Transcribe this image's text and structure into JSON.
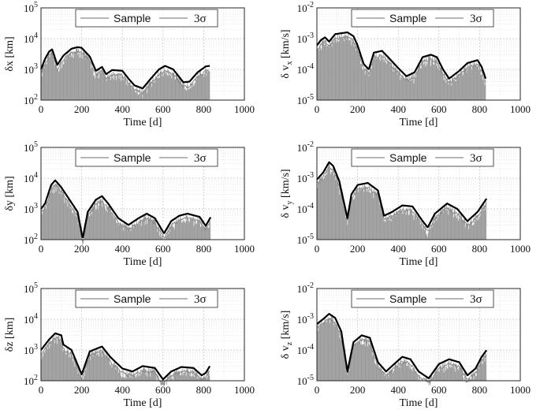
{
  "chart_data": [
    {
      "type": "line",
      "id": "dx",
      "ylabel": "δx [km]",
      "xlabel": "Time [d]",
      "xlim": [
        0,
        1000
      ],
      "ylim": [
        100,
        100000
      ],
      "xticks": [
        0,
        200,
        400,
        600,
        800,
        1000
      ],
      "yticks": [
        {
          "base": "10",
          "exp": "2"
        },
        {
          "base": "10",
          "exp": "3"
        },
        {
          "base": "10",
          "exp": "4"
        },
        {
          "base": "10",
          "exp": "5"
        }
      ],
      "yexps": [
        2,
        3,
        4,
        5
      ],
      "legend": {
        "entries": [
          "Sample",
          "3σ"
        ],
        "position": "top"
      },
      "series": [
        {
          "name": "3σ",
          "x": [
            0,
            20,
            40,
            55,
            80,
            110,
            150,
            180,
            200,
            240,
            270,
            300,
            320,
            350,
            400,
            430,
            460,
            500,
            540,
            580,
            610,
            650,
            700,
            730,
            770,
            810,
            830
          ],
          "values": [
            1000,
            2200,
            3800,
            4500,
            1400,
            2800,
            4700,
            5300,
            5000,
            2600,
            900,
            1200,
            700,
            950,
            900,
            500,
            300,
            240,
            500,
            1000,
            1300,
            1000,
            380,
            400,
            800,
            1250,
            1300
          ]
        },
        {
          "name": "Sample",
          "x": [
            0,
            40,
            80,
            150,
            200,
            270,
            320,
            400,
            500,
            610,
            700,
            830
          ],
          "values": [
            800,
            3000,
            1100,
            3800,
            4000,
            700,
            550,
            700,
            190,
            1000,
            300,
            1000
          ]
        }
      ]
    },
    {
      "type": "line",
      "id": "dvx",
      "ylabel": "δ v_x [km/s]",
      "xlabel": "Time [d]",
      "xlim": [
        0,
        1000
      ],
      "ylim": [
        1e-05,
        0.01
      ],
      "xticks": [
        0,
        200,
        400,
        600,
        800,
        1000
      ],
      "yticks": [
        {
          "base": "10",
          "exp": "-5"
        },
        {
          "base": "10",
          "exp": "-4"
        },
        {
          "base": "10",
          "exp": "-3"
        },
        {
          "base": "10",
          "exp": "-2"
        }
      ],
      "yexps": [
        -5,
        -4,
        -3,
        -2
      ],
      "legend": {
        "entries": [
          "Sample",
          "3σ"
        ],
        "position": "top"
      },
      "series": [
        {
          "name": "3σ",
          "x": [
            0,
            20,
            40,
            60,
            90,
            120,
            150,
            180,
            200,
            230,
            255,
            280,
            320,
            350,
            400,
            440,
            480,
            520,
            560,
            590,
            620,
            650,
            700,
            740,
            790,
            810,
            830
          ],
          "values": [
            0.0006,
            0.0009,
            0.0011,
            0.0008,
            0.0014,
            0.0015,
            0.0016,
            0.0012,
            0.0006,
            0.00015,
            0.0001,
            0.00035,
            0.0004,
            0.00025,
            0.00011,
            6e-05,
            8e-05,
            0.00025,
            0.0003,
            0.00025,
            0.0001,
            5e-05,
            9e-05,
            0.00016,
            0.0002,
            0.00012,
            5e-05
          ]
        },
        {
          "name": "Sample",
          "x": [
            0,
            60,
            150,
            200,
            255,
            320,
            440,
            560,
            650,
            790,
            830
          ],
          "values": [
            0.0004,
            0.0006,
            0.001,
            0.0004,
            6e-05,
            0.00025,
            3e-05,
            0.0002,
            3e-05,
            0.0001,
            3e-05
          ]
        }
      ]
    },
    {
      "type": "line",
      "id": "dy",
      "ylabel": "δy [km]",
      "xlabel": "Time [d]",
      "xlim": [
        0,
        1000
      ],
      "ylim": [
        100,
        100000
      ],
      "xticks": [
        0,
        200,
        400,
        600,
        800,
        1000
      ],
      "yticks": [
        {
          "base": "10",
          "exp": "2"
        },
        {
          "base": "10",
          "exp": "3"
        },
        {
          "base": "10",
          "exp": "4"
        },
        {
          "base": "10",
          "exp": "5"
        }
      ],
      "yexps": [
        2,
        3,
        4,
        5
      ],
      "legend": {
        "entries": [
          "Sample",
          "3σ"
        ],
        "position": "top"
      },
      "series": [
        {
          "name": "3σ",
          "x": [
            0,
            20,
            50,
            70,
            100,
            140,
            180,
            205,
            230,
            270,
            300,
            330,
            380,
            430,
            480,
            520,
            560,
            605,
            640,
            680,
            720,
            780,
            810,
            835
          ],
          "values": [
            1000,
            1500,
            6000,
            8500,
            5000,
            2000,
            800,
            110,
            800,
            2000,
            2600,
            1500,
            500,
            300,
            500,
            700,
            500,
            160,
            400,
            600,
            700,
            550,
            280,
            550
          ]
        },
        {
          "name": "Sample",
          "x": [
            0,
            70,
            180,
            205,
            300,
            430,
            520,
            605,
            720,
            835
          ],
          "values": [
            800,
            6000,
            600,
            110,
            2000,
            220,
            500,
            150,
            500,
            400
          ]
        }
      ]
    },
    {
      "type": "line",
      "id": "dvy",
      "ylabel": "δ v_y [km/s]",
      "xlabel": "Time [d]",
      "xlim": [
        0,
        1000
      ],
      "ylim": [
        1e-05,
        0.01
      ],
      "xticks": [
        0,
        200,
        400,
        600,
        800,
        1000
      ],
      "yticks": [
        {
          "base": "10",
          "exp": "-5"
        },
        {
          "base": "10",
          "exp": "-4"
        },
        {
          "base": "10",
          "exp": "-3"
        },
        {
          "base": "10",
          "exp": "-2"
        }
      ],
      "yexps": [
        -5,
        -4,
        -3,
        -2
      ],
      "legend": {
        "entries": [
          "Sample",
          "3σ"
        ],
        "position": "top"
      },
      "series": [
        {
          "name": "3σ",
          "x": [
            0,
            30,
            60,
            80,
            110,
            150,
            170,
            200,
            250,
            300,
            330,
            370,
            420,
            470,
            520,
            545,
            580,
            640,
            690,
            740,
            790,
            835
          ],
          "values": [
            0.0009,
            0.0015,
            0.0033,
            0.0025,
            0.0008,
            5e-05,
            0.0003,
            0.0006,
            0.0007,
            0.0004,
            6e-05,
            8e-05,
            0.00013,
            0.00012,
            4e-05,
            2.5e-05,
            7e-05,
            0.00015,
            0.0001,
            4e-05,
            8e-05,
            0.00022
          ]
        },
        {
          "name": "Sample",
          "x": [
            0,
            60,
            150,
            250,
            330,
            420,
            545,
            640,
            740,
            835
          ],
          "values": [
            0.0007,
            0.0025,
            5e-05,
            0.0005,
            5e-05,
            0.0001,
            2e-05,
            0.0001,
            3e-05,
            0.00015
          ]
        }
      ]
    },
    {
      "type": "line",
      "id": "dz",
      "ylabel": "δz [km]",
      "xlabel": "Time [d]",
      "xlim": [
        0,
        1000
      ],
      "ylim": [
        100,
        100000
      ],
      "xticks": [
        0,
        200,
        400,
        600,
        800,
        1000
      ],
      "yticks": [
        {
          "base": "10",
          "exp": "2"
        },
        {
          "base": "10",
          "exp": "3"
        },
        {
          "base": "10",
          "exp": "4"
        },
        {
          "base": "10",
          "exp": "5"
        }
      ],
      "yexps": [
        2,
        3,
        4,
        5
      ],
      "legend": {
        "entries": [
          "Sample",
          "3σ"
        ],
        "position": "top"
      },
      "series": [
        {
          "name": "3σ",
          "x": [
            0,
            40,
            70,
            100,
            110,
            150,
            200,
            240,
            300,
            340,
            400,
            450,
            500,
            560,
            600,
            640,
            690,
            750,
            790,
            810,
            830
          ],
          "values": [
            1000,
            2200,
            3500,
            3000,
            1500,
            1000,
            160,
            900,
            1300,
            600,
            250,
            200,
            300,
            260,
            110,
            200,
            280,
            260,
            150,
            180,
            300
          ]
        },
        {
          "name": "Sample",
          "x": [
            0,
            70,
            150,
            200,
            300,
            400,
            500,
            600,
            690,
            830
          ],
          "values": [
            800,
            2800,
            800,
            160,
            1000,
            200,
            220,
            110,
            200,
            200
          ]
        }
      ]
    },
    {
      "type": "line",
      "id": "dvz",
      "ylabel": "δ v_z [km/s]",
      "xlabel": "Time [d]",
      "xlim": [
        0,
        1000
      ],
      "ylim": [
        1e-05,
        0.01
      ],
      "xticks": [
        0,
        200,
        400,
        600,
        800,
        1000
      ],
      "yticks": [
        {
          "base": "10",
          "exp": "-5"
        },
        {
          "base": "10",
          "exp": "-4"
        },
        {
          "base": "10",
          "exp": "-3"
        },
        {
          "base": "10",
          "exp": "-2"
        }
      ],
      "yexps": [
        -5,
        -4,
        -3,
        -2
      ],
      "legend": {
        "entries": [
          "Sample",
          "3σ"
        ],
        "position": "top"
      },
      "series": [
        {
          "name": "3σ",
          "x": [
            0,
            30,
            60,
            90,
            120,
            150,
            180,
            220,
            260,
            300,
            340,
            380,
            420,
            460,
            500,
            550,
            600,
            650,
            700,
            740,
            780,
            810,
            835
          ],
          "values": [
            0.0007,
            0.001,
            0.0015,
            0.0011,
            0.0004,
            2e-05,
            0.00018,
            0.0003,
            0.00025,
            4e-05,
            2e-05,
            3.5e-05,
            6e-05,
            5e-05,
            2e-05,
            1.2e-05,
            3.5e-05,
            5e-05,
            4e-05,
            1.5e-05,
            2.5e-05,
            6e-05,
            0.0001
          ]
        },
        {
          "name": "Sample",
          "x": [
            0,
            60,
            150,
            220,
            340,
            420,
            550,
            650,
            740,
            835
          ],
          "values": [
            0.0005,
            0.001,
            2e-05,
            0.00025,
            2e-05,
            5e-05,
            1e-05,
            4e-05,
            1e-05,
            7e-05
          ]
        }
      ]
    }
  ]
}
